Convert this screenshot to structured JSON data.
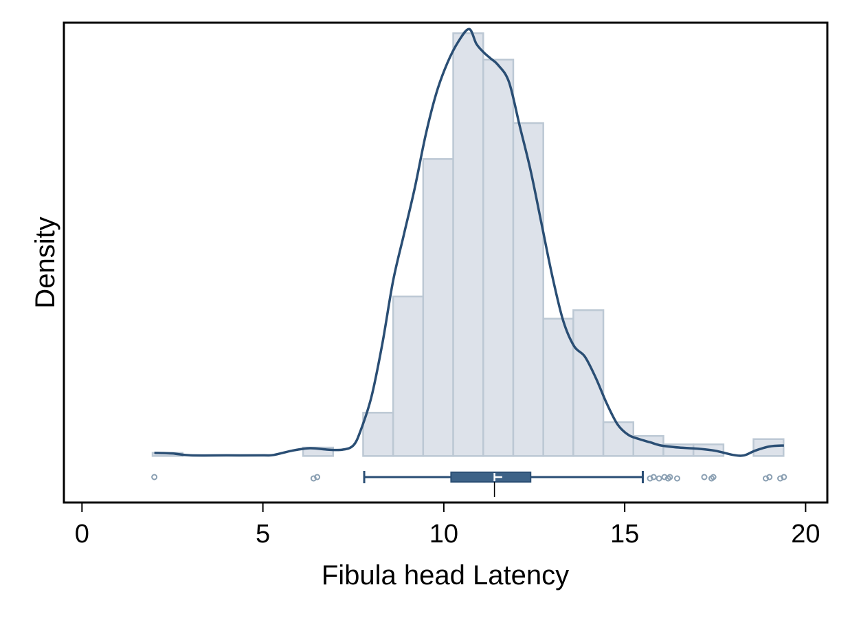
{
  "chart_data": {
    "type": "histogram",
    "title": "",
    "xlabel": "Fibula head Latency",
    "ylabel": "Density",
    "xlim": [
      -0.5,
      20.6
    ],
    "ylim": [
      -0.022,
      0.205
    ],
    "x_ticks": [
      {
        "value": 0,
        "label": "0"
      },
      {
        "value": 5,
        "label": "5"
      },
      {
        "value": 10,
        "label": "10"
      },
      {
        "value": 15,
        "label": "15"
      },
      {
        "value": 20,
        "label": "20"
      }
    ],
    "y_ticks_shown": false,
    "grid": false,
    "legend": "none",
    "colors": {
      "bar_fill": "#dde2ea",
      "bar_stroke": "#bcc8d4",
      "line": "#2a4e74",
      "box_fill": "#3d6287",
      "outlier": "#8a9fb2",
      "axis": "#000000"
    },
    "histogram": {
      "bin_width": 0.83,
      "bins": [
        {
          "x0": 1.95,
          "density": 0.0015
        },
        {
          "x0": 6.11,
          "density": 0.004
        },
        {
          "x0": 7.77,
          "density": 0.0205
        },
        {
          "x0": 8.6,
          "density": 0.0755
        },
        {
          "x0": 9.43,
          "density": 0.1405
        },
        {
          "x0": 10.26,
          "density": 0.2
        },
        {
          "x0": 11.09,
          "density": 0.1875
        },
        {
          "x0": 11.92,
          "density": 0.1575
        },
        {
          "x0": 12.75,
          "density": 0.065
        },
        {
          "x0": 13.58,
          "density": 0.069
        },
        {
          "x0": 14.41,
          "density": 0.016
        },
        {
          "x0": 15.24,
          "density": 0.0095
        },
        {
          "x0": 16.07,
          "density": 0.0055
        },
        {
          "x0": 16.9,
          "density": 0.0055
        },
        {
          "x0": 18.56,
          "density": 0.008
        }
      ]
    },
    "kde": {
      "x": [
        2.0,
        2.5,
        3.0,
        4.0,
        5.0,
        5.3,
        5.8,
        6.3,
        6.8,
        7.2,
        7.5,
        7.7,
        8.0,
        8.3,
        8.6,
        8.9,
        9.2,
        9.5,
        9.8,
        10.1,
        10.4,
        10.7,
        10.9,
        11.1,
        11.3,
        11.5,
        11.8,
        12.1,
        12.4,
        12.7,
        13.0,
        13.3,
        13.6,
        13.9,
        14.2,
        14.5,
        14.8,
        15.1,
        15.4,
        15.7,
        16.0,
        16.5,
        17.0,
        17.5,
        18.0,
        18.3,
        18.6,
        19.0,
        19.4
      ],
      "y": [
        0.0015,
        0.0012,
        0.0003,
        0.0003,
        0.0003,
        0.0005,
        0.0025,
        0.0037,
        0.003,
        0.003,
        0.005,
        0.012,
        0.028,
        0.053,
        0.083,
        0.105,
        0.127,
        0.152,
        0.172,
        0.186,
        0.196,
        0.202,
        0.195,
        0.191,
        0.188,
        0.185,
        0.177,
        0.156,
        0.135,
        0.11,
        0.085,
        0.064,
        0.052,
        0.047,
        0.037,
        0.025,
        0.015,
        0.01,
        0.008,
        0.0065,
        0.005,
        0.004,
        0.0035,
        0.0025,
        0.0005,
        0.0003,
        0.0025,
        0.0045,
        0.005
      ]
    },
    "boxplot": {
      "whisker_low": 7.8,
      "q1": 10.2,
      "median": 11.4,
      "mean": 11.5,
      "q3": 12.4,
      "whisker_high": 15.5,
      "outliers": [
        2.0,
        6.4,
        6.5,
        15.7,
        15.8,
        15.95,
        16.1,
        16.2,
        16.25,
        16.45,
        17.2,
        17.4,
        17.45,
        18.9,
        19.0,
        19.3,
        19.4
      ]
    }
  }
}
